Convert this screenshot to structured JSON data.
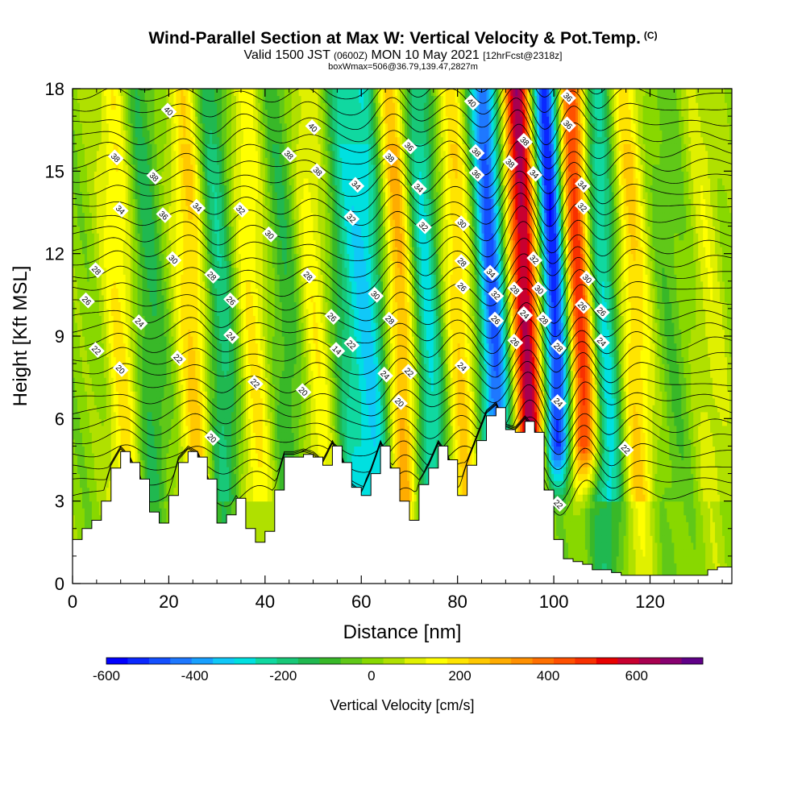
{
  "chart_data": {
    "type": "heatmap",
    "title": "Wind-Parallel Section at Max W: Vertical Velocity & Pot.Temp.",
    "title_mark": "(C)",
    "subtitle_main_a": "Valid 1500 JST",
    "subtitle_utc": "(0600Z)",
    "subtitle_main_b": "MON 10 May 2021",
    "subtitle_fcst": "[12hrFcst@2318z]",
    "subtitle2": "boxWmax=506@36.79,139.47,2827m",
    "xlabel": "Distance [nm]",
    "ylabel": "Height [Kft MSL]",
    "xlim": [
      0,
      137
    ],
    "ylim": [
      0,
      18
    ],
    "xticks": [
      "0",
      "20",
      "40",
      "60",
      "80",
      "100",
      "120"
    ],
    "yticks": [
      "0",
      "3",
      "6",
      "9",
      "12",
      "15",
      "18"
    ],
    "colorbar": {
      "label": "Vertical Velocity [cm/s]",
      "range": [
        -600,
        750
      ],
      "ticks": [
        "-600",
        "-400",
        "-200",
        "0",
        "200",
        "400",
        "600"
      ],
      "colors": [
        "#0000ff",
        "#0a28ff",
        "#1450ff",
        "#1e78ff",
        "#18a0ff",
        "#10c8f8",
        "#00e0e0",
        "#10d8a0",
        "#18c878",
        "#20b850",
        "#38b828",
        "#60c818",
        "#88d800",
        "#b0e000",
        "#e0f000",
        "#ffff00",
        "#ffe400",
        "#ffc800",
        "#ffac00",
        "#ff9000",
        "#ff7000",
        "#ff5000",
        "#f83000",
        "#e80000",
        "#c80030",
        "#a80050",
        "#880070",
        "#600088"
      ]
    },
    "bands": [
      {
        "x": 9,
        "w": 200
      },
      {
        "x": 14,
        "w": -150
      },
      {
        "x": 24,
        "w": 260
      },
      {
        "x": 29,
        "w": -230
      },
      {
        "x": 36,
        "w": 180
      },
      {
        "x": 43,
        "w": -120
      },
      {
        "x": 49,
        "w": 160
      },
      {
        "x": 56,
        "w": -200
      },
      {
        "x": 61,
        "w": -280
      },
      {
        "x": 67,
        "w": 340
      },
      {
        "x": 72,
        "w": -320
      },
      {
        "x": 79,
        "w": 230
      },
      {
        "x": 86,
        "w": -480
      },
      {
        "x": 93,
        "w": 650
      },
      {
        "x": 99,
        "w": -600
      },
      {
        "x": 104,
        "w": 580
      },
      {
        "x": 109,
        "w": -330
      },
      {
        "x": 115,
        "w": 240
      },
      {
        "x": 123,
        "w": -60
      },
      {
        "x": 131,
        "w": 100
      }
    ],
    "terrain": {
      "x": [
        0,
        2,
        4,
        6,
        8,
        10,
        12,
        14,
        16,
        18,
        20,
        22,
        24,
        26,
        28,
        30,
        32,
        34,
        36,
        38,
        40,
        42,
        44,
        46,
        48,
        50,
        52,
        54,
        56,
        58,
        60,
        62,
        64,
        66,
        68,
        70,
        72,
        74,
        76,
        78,
        80,
        82,
        84,
        86,
        88,
        90,
        92,
        94,
        96,
        98,
        100,
        102,
        104,
        106,
        108,
        110,
        112,
        114,
        116,
        118,
        120,
        122,
        124,
        126,
        128,
        130,
        132,
        134,
        136,
        137
      ],
      "h": [
        1.6,
        2.0,
        2.3,
        3.0,
        4.2,
        4.8,
        4.4,
        3.8,
        2.6,
        2.2,
        3.2,
        4.4,
        4.8,
        4.6,
        3.8,
        2.2,
        2.5,
        3.1,
        2.0,
        1.5,
        1.9,
        3.4,
        4.6,
        4.6,
        4.7,
        4.6,
        4.3,
        5.0,
        4.4,
        3.5,
        3.2,
        4.0,
        5.0,
        4.2,
        3.0,
        2.3,
        3.6,
        4.2,
        5.0,
        4.5,
        3.2,
        4.3,
        5.2,
        6.1,
        6.4,
        5.6,
        5.5,
        5.9,
        5.5,
        3.4,
        1.6,
        0.9,
        0.8,
        0.7,
        0.5,
        0.5,
        0.4,
        0.3,
        0.3,
        0.3,
        0.3,
        0.3,
        0.3,
        0.3,
        0.3,
        0.3,
        0.5,
        0.6,
        0.6,
        0.6
      ]
    },
    "contour_labels": [
      {
        "x": 20,
        "y": 17.2,
        "v": "40"
      },
      {
        "x": 50,
        "y": 16.6,
        "v": "40"
      },
      {
        "x": 83,
        "y": 17.5,
        "v": "40"
      },
      {
        "x": 9,
        "y": 15.5,
        "v": "38"
      },
      {
        "x": 17,
        "y": 14.8,
        "v": "38"
      },
      {
        "x": 45,
        "y": 15.6,
        "v": "38"
      },
      {
        "x": 51,
        "y": 15.0,
        "v": "38"
      },
      {
        "x": 66,
        "y": 15.5,
        "v": "38"
      },
      {
        "x": 84,
        "y": 15.7,
        "v": "38"
      },
      {
        "x": 94,
        "y": 16.1,
        "v": "38"
      },
      {
        "x": 91,
        "y": 15.3,
        "v": "38"
      },
      {
        "x": 84,
        "y": 14.9,
        "v": "36"
      },
      {
        "x": 70,
        "y": 15.9,
        "v": "36"
      },
      {
        "x": 103,
        "y": 16.7,
        "v": "36"
      },
      {
        "x": 19,
        "y": 13.4,
        "v": "36"
      },
      {
        "x": 103,
        "y": 17.7,
        "v": "36"
      },
      {
        "x": 10,
        "y": 13.6,
        "v": "34"
      },
      {
        "x": 26,
        "y": 13.7,
        "v": "34"
      },
      {
        "x": 59,
        "y": 14.5,
        "v": "34"
      },
      {
        "x": 72,
        "y": 14.4,
        "v": "34"
      },
      {
        "x": 96,
        "y": 14.9,
        "v": "34"
      },
      {
        "x": 106,
        "y": 14.5,
        "v": "34"
      },
      {
        "x": 87,
        "y": 11.3,
        "v": "34"
      },
      {
        "x": 35,
        "y": 13.6,
        "v": "32"
      },
      {
        "x": 58,
        "y": 13.3,
        "v": "32"
      },
      {
        "x": 73,
        "y": 13.0,
        "v": "32"
      },
      {
        "x": 106,
        "y": 13.7,
        "v": "32"
      },
      {
        "x": 96,
        "y": 11.8,
        "v": "32"
      },
      {
        "x": 88,
        "y": 10.5,
        "v": "32"
      },
      {
        "x": 41,
        "y": 12.7,
        "v": "30"
      },
      {
        "x": 21,
        "y": 11.8,
        "v": "30"
      },
      {
        "x": 81,
        "y": 13.1,
        "v": "30"
      },
      {
        "x": 63,
        "y": 10.5,
        "v": "30"
      },
      {
        "x": 97,
        "y": 10.7,
        "v": "30"
      },
      {
        "x": 107,
        "y": 11.1,
        "v": "30"
      },
      {
        "x": 5,
        "y": 11.4,
        "v": "28"
      },
      {
        "x": 29,
        "y": 11.2,
        "v": "28"
      },
      {
        "x": 49,
        "y": 11.2,
        "v": "28"
      },
      {
        "x": 81,
        "y": 11.7,
        "v": "28"
      },
      {
        "x": 92,
        "y": 10.7,
        "v": "28"
      },
      {
        "x": 98,
        "y": 9.6,
        "v": "28"
      },
      {
        "x": 66,
        "y": 9.6,
        "v": "28"
      },
      {
        "x": 101,
        "y": 8.6,
        "v": "28"
      },
      {
        "x": 3,
        "y": 10.3,
        "v": "26"
      },
      {
        "x": 33,
        "y": 10.3,
        "v": "26"
      },
      {
        "x": 54,
        "y": 9.7,
        "v": "26"
      },
      {
        "x": 81,
        "y": 10.8,
        "v": "26"
      },
      {
        "x": 88,
        "y": 9.6,
        "v": "26"
      },
      {
        "x": 92,
        "y": 8.8,
        "v": "26"
      },
      {
        "x": 106,
        "y": 10.1,
        "v": "26"
      },
      {
        "x": 110,
        "y": 9.9,
        "v": "26"
      },
      {
        "x": 14,
        "y": 9.5,
        "v": "24"
      },
      {
        "x": 33,
        "y": 9.0,
        "v": "24"
      },
      {
        "x": 94,
        "y": 9.8,
        "v": "24"
      },
      {
        "x": 65,
        "y": 7.6,
        "v": "24"
      },
      {
        "x": 81,
        "y": 7.9,
        "v": "24"
      },
      {
        "x": 101,
        "y": 6.6,
        "v": "24"
      },
      {
        "x": 110,
        "y": 8.8,
        "v": "24"
      },
      {
        "x": 5,
        "y": 8.5,
        "v": "22"
      },
      {
        "x": 22,
        "y": 8.2,
        "v": "22"
      },
      {
        "x": 58,
        "y": 8.7,
        "v": "22"
      },
      {
        "x": 38,
        "y": 7.3,
        "v": "22"
      },
      {
        "x": 70,
        "y": 7.7,
        "v": "22"
      },
      {
        "x": 101,
        "y": 2.9,
        "v": "22"
      },
      {
        "x": 115,
        "y": 4.9,
        "v": "22"
      },
      {
        "x": 55,
        "y": 8.5,
        "v": "14"
      },
      {
        "x": 10,
        "y": 7.8,
        "v": "20"
      },
      {
        "x": 48,
        "y": 7.0,
        "v": "20"
      },
      {
        "x": 68,
        "y": 6.6,
        "v": "20"
      },
      {
        "x": 29,
        "y": 5.3,
        "v": "20"
      }
    ]
  }
}
